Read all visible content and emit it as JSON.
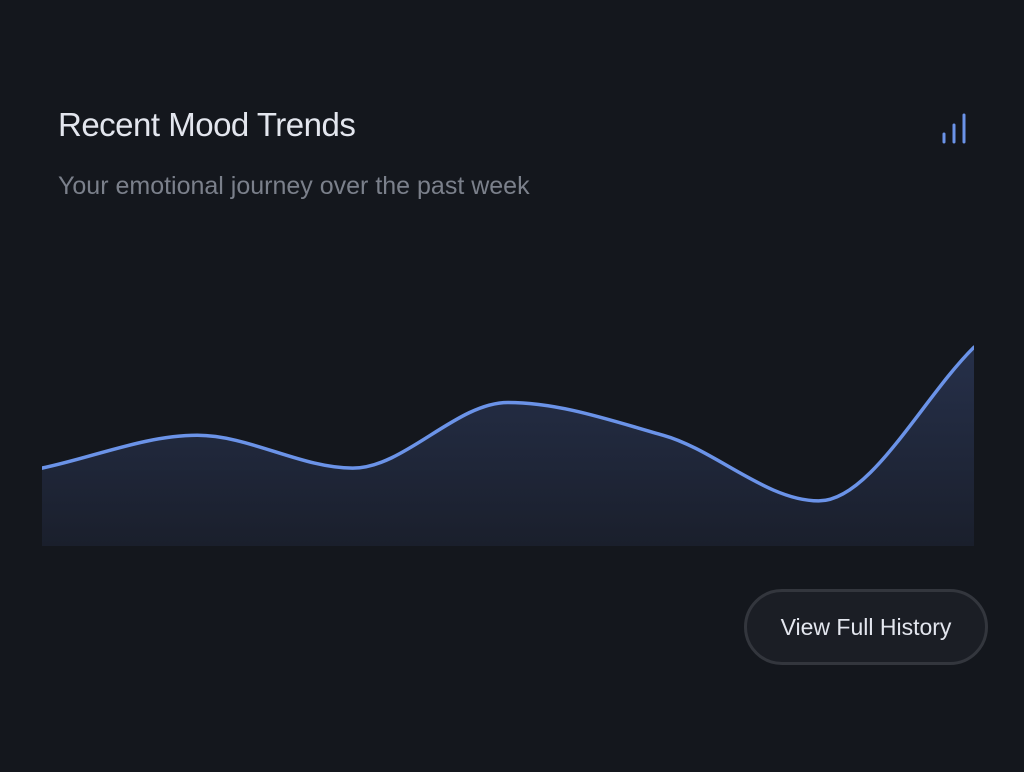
{
  "card": {
    "title": "Recent Mood Trends",
    "subtitle": "Your emotional journey over the past week",
    "header_icon": "bar-chart-icon",
    "accent_color": "#6b93e8"
  },
  "actions": {
    "view_history_label": "View Full History"
  },
  "chart_data": {
    "type": "area",
    "x": [
      1,
      2,
      3,
      4,
      5,
      6,
      7
    ],
    "values": [
      0.38,
      0.54,
      0.38,
      0.7,
      0.54,
      0.22,
      0.97
    ],
    "ylim": [
      0,
      1.2
    ],
    "grid": false,
    "line_color": "#6b93e8"
  }
}
